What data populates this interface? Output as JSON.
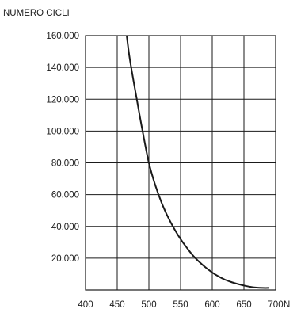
{
  "chart_data": {
    "type": "line",
    "title": "",
    "ylabel": "NUMERO CICLI",
    "xlabel": "N",
    "xlim": [
      400,
      700
    ],
    "ylim": [
      0,
      160000
    ],
    "x_ticks": [
      400,
      450,
      500,
      550,
      600,
      650,
      700
    ],
    "x_tick_labels": [
      "400",
      "450",
      "500",
      "550",
      "600",
      "650",
      "700"
    ],
    "y_ticks": [
      20000,
      40000,
      60000,
      80000,
      100000,
      120000,
      140000,
      160000
    ],
    "y_tick_labels": [
      "20.000",
      "40.000",
      "60.000",
      "80.000",
      "100.000",
      "120.000",
      "140.000",
      "160.000"
    ],
    "grid": true,
    "series": [
      {
        "x": [
          465,
          470,
          480,
          490,
          500,
          510,
          520,
          530,
          540,
          550,
          560,
          570,
          580,
          590,
          600,
          610,
          620,
          630,
          640,
          650,
          660,
          670,
          680,
          690
        ],
        "values": [
          160000,
          145000,
          122000,
          100000,
          80000,
          66000,
          55000,
          46000,
          38500,
          32000,
          26500,
          21500,
          17500,
          14000,
          11000,
          8500,
          6500,
          5000,
          3800,
          2800,
          2000,
          1500,
          1300,
          1300
        ]
      }
    ]
  }
}
